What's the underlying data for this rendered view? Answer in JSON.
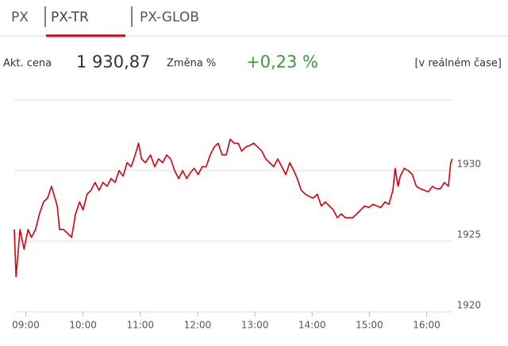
{
  "tabs": [
    "PX",
    "PX-TR",
    "PX-GLOB"
  ],
  "info": {
    "price_label": "Akt. cena",
    "price": "1 930,87",
    "change_label": "Změna %",
    "change": "+0,23 %",
    "realtime": "[v reálném čase]"
  },
  "chart_data": {
    "type": "line",
    "x": [
      8.8,
      8.83,
      8.9,
      8.97,
      9.04,
      9.1,
      9.17,
      9.24,
      9.31,
      9.38,
      9.45,
      9.49,
      9.55,
      9.59,
      9.66,
      9.73,
      9.8,
      9.87,
      9.94,
      10.0,
      10.07,
      10.14,
      10.21,
      10.28,
      10.35,
      10.42,
      10.49,
      10.56,
      10.63,
      10.7,
      10.77,
      10.84,
      10.91,
      10.97,
      11.02,
      11.09,
      11.18,
      11.25,
      11.32,
      11.39,
      11.46,
      11.53,
      11.6,
      11.67,
      11.74,
      11.81,
      11.87,
      11.94,
      12.01,
      12.08,
      12.15,
      12.22,
      12.29,
      12.36,
      12.43,
      12.5,
      12.57,
      12.64,
      12.71,
      12.77,
      12.84,
      12.91,
      12.98,
      13.05,
      13.12,
      13.19,
      13.26,
      13.33,
      13.4,
      13.47,
      13.54,
      13.61,
      13.68,
      13.74,
      13.81,
      13.88,
      13.95,
      14.02,
      14.09,
      14.16,
      14.23,
      14.3,
      14.37,
      14.44,
      14.51,
      14.58,
      14.64,
      14.71,
      14.78,
      14.85,
      14.92,
      14.99,
      15.06,
      15.13,
      15.2,
      15.27,
      15.34,
      15.41,
      15.45,
      15.5,
      15.54,
      15.61,
      15.68,
      15.75,
      15.82,
      15.89,
      15.96,
      16.03,
      16.1,
      16.17,
      16.24,
      16.31,
      16.38,
      16.42,
      16.45
    ],
    "series": [
      {
        "color": "#d7000f",
        "values": [
          1925.83,
          1922.5,
          1925.83,
          1924.44,
          1925.83,
          1925.28,
          1925.83,
          1926.94,
          1927.78,
          1928.06,
          1928.89,
          1928.33,
          1927.5,
          1925.83,
          1925.83,
          1925.56,
          1925.28,
          1926.94,
          1927.78,
          1927.22,
          1928.33,
          1928.61,
          1929.17,
          1928.61,
          1929.17,
          1928.89,
          1929.44,
          1929.17,
          1930,
          1929.61,
          1930.56,
          1930.28,
          1931.11,
          1931.94,
          1930.83,
          1930.56,
          1931.11,
          1930.28,
          1930.83,
          1930.56,
          1931.11,
          1930.83,
          1930,
          1929.44,
          1930,
          1929.44,
          1929.83,
          1930.17,
          1929.72,
          1930.28,
          1930.28,
          1931.11,
          1931.67,
          1931.94,
          1931.11,
          1931.11,
          1932.22,
          1931.94,
          1931.94,
          1931.39,
          1931.67,
          1931.78,
          1931.94,
          1931.67,
          1931.39,
          1930.83,
          1930.56,
          1930.28,
          1930.83,
          1930.28,
          1929.72,
          1930.56,
          1930,
          1929.44,
          1928.61,
          1928.33,
          1928.17,
          1928.06,
          1928.33,
          1927.5,
          1927.78,
          1927.5,
          1927.22,
          1926.67,
          1926.94,
          1926.67,
          1926.67,
          1926.67,
          1926.94,
          1927.22,
          1927.5,
          1927.39,
          1927.61,
          1927.5,
          1927.39,
          1927.78,
          1927.61,
          1928.61,
          1930.17,
          1928.89,
          1929.61,
          1930.17,
          1930,
          1929.72,
          1928.89,
          1928.72,
          1928.61,
          1928.5,
          1928.89,
          1928.72,
          1928.72,
          1929.17,
          1928.89,
          1930.56,
          1930.83
        ]
      }
    ],
    "xlim": [
      8.8,
      16.45
    ],
    "xticks": [
      {
        "value": 9,
        "label": "09:00"
      },
      {
        "value": 10,
        "label": "10:00"
      },
      {
        "value": 11,
        "label": "11:00"
      },
      {
        "value": 12,
        "label": "12:00"
      },
      {
        "value": 13,
        "label": "13:00"
      },
      {
        "value": 14,
        "label": "14:00"
      },
      {
        "value": 15,
        "label": "15:00"
      },
      {
        "value": 16,
        "label": "16:00"
      }
    ],
    "ylim": [
      1920,
      1935
    ],
    "yticks": [
      1920,
      1925,
      1930
    ],
    "grid": true
  }
}
